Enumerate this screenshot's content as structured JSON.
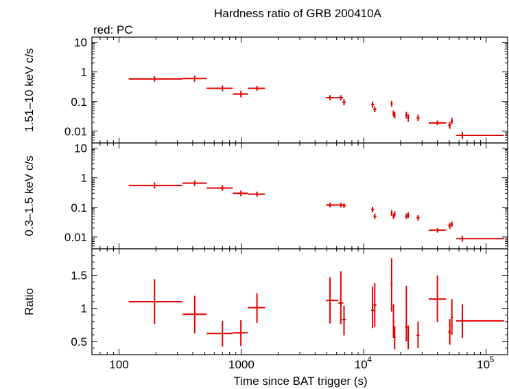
{
  "title": "Hardness ratio of GRB 200410A",
  "mode_label": "red: PC",
  "colors": {
    "data": "#e00000",
    "axes": "#000000",
    "background": "#ffffff"
  },
  "chart_data": [
    {
      "type": "scatter",
      "xscale": "log",
      "yscale": "log",
      "xlim": [
        60,
        150000
      ],
      "ylim": [
        0.004,
        15
      ],
      "ylabel": "1.51–10 keV c/s",
      "yticks": [
        {
          "v": 10,
          "label": "10"
        },
        {
          "v": 1,
          "label": "1"
        },
        {
          "v": 0.1,
          "label": "0.1"
        },
        {
          "v": 0.01,
          "label": "0.01"
        }
      ],
      "series": [
        {
          "color": "#e00000",
          "points": [
            {
              "x": 195,
              "xlo": 120,
              "xhi": 330,
              "y": 0.58,
              "ylo": 0.47,
              "yhi": 0.72
            },
            {
              "x": 415,
              "xlo": 330,
              "xhi": 520,
              "y": 0.6,
              "ylo": 0.47,
              "yhi": 0.76
            },
            {
              "x": 700,
              "xlo": 520,
              "xhi": 850,
              "y": 0.28,
              "ylo": 0.22,
              "yhi": 0.35
            },
            {
              "x": 990,
              "xlo": 850,
              "xhi": 1130,
              "y": 0.18,
              "ylo": 0.14,
              "yhi": 0.23
            },
            {
              "x": 1340,
              "xlo": 1130,
              "xhi": 1560,
              "y": 0.28,
              "ylo": 0.23,
              "yhi": 0.34
            },
            {
              "x": 5300,
              "xlo": 4900,
              "xhi": 6200,
              "y": 0.135,
              "ylo": 0.11,
              "yhi": 0.165
            },
            {
              "x": 6500,
              "xlo": 6200,
              "xhi": 6800,
              "y": 0.135,
              "ylo": 0.11,
              "yhi": 0.165
            },
            {
              "x": 6900,
              "xlo": 6700,
              "xhi": 7150,
              "y": 0.095,
              "ylo": 0.075,
              "yhi": 0.12
            },
            {
              "x": 11800,
              "xlo": 11500,
              "xhi": 12200,
              "y": 0.08,
              "ylo": 0.062,
              "yhi": 0.1
            },
            {
              "x": 12300,
              "xlo": 12000,
              "xhi": 12700,
              "y": 0.055,
              "ylo": 0.044,
              "yhi": 0.068
            },
            {
              "x": 16900,
              "xlo": 16600,
              "xhi": 17200,
              "y": 0.085,
              "ylo": 0.068,
              "yhi": 0.105
            },
            {
              "x": 17500,
              "xlo": 17200,
              "xhi": 17800,
              "y": 0.04,
              "ylo": 0.031,
              "yhi": 0.05
            },
            {
              "x": 17900,
              "xlo": 17700,
              "xhi": 18200,
              "y": 0.035,
              "ylo": 0.027,
              "yhi": 0.044
            },
            {
              "x": 22300,
              "xlo": 21800,
              "xhi": 22800,
              "y": 0.035,
              "ylo": 0.027,
              "yhi": 0.045
            },
            {
              "x": 23100,
              "xlo": 22700,
              "xhi": 23500,
              "y": 0.028,
              "ylo": 0.021,
              "yhi": 0.037
            },
            {
              "x": 27800,
              "xlo": 27000,
              "xhi": 28600,
              "y": 0.028,
              "ylo": 0.022,
              "yhi": 0.036
            },
            {
              "x": 40000,
              "xlo": 34000,
              "xhi": 47000,
              "y": 0.019,
              "ylo": 0.016,
              "yhi": 0.023
            },
            {
              "x": 50500,
              "xlo": 49000,
              "xhi": 51500,
              "y": 0.016,
              "ylo": 0.012,
              "yhi": 0.021
            },
            {
              "x": 52500,
              "xlo": 51500,
              "xhi": 53500,
              "y": 0.022,
              "ylo": 0.017,
              "yhi": 0.028
            },
            {
              "x": 64000,
              "xlo": 57000,
              "xhi": 140000,
              "y": 0.0072,
              "ylo": 0.0055,
              "yhi": 0.0095
            }
          ]
        }
      ]
    },
    {
      "type": "scatter",
      "xscale": "log",
      "yscale": "log",
      "xlim": [
        60,
        150000
      ],
      "ylim": [
        0.004,
        15
      ],
      "ylabel": "0.3–1.5 keV c/s",
      "yticks": [
        {
          "v": 10,
          "label": "10"
        },
        {
          "v": 1,
          "label": "1"
        },
        {
          "v": 0.1,
          "label": "0.1"
        },
        {
          "v": 0.01,
          "label": "0.01"
        }
      ],
      "series": [
        {
          "color": "#e00000",
          "points": [
            {
              "x": 195,
              "xlo": 120,
              "xhi": 330,
              "y": 0.55,
              "ylo": 0.43,
              "yhi": 0.7
            },
            {
              "x": 415,
              "xlo": 330,
              "xhi": 520,
              "y": 0.66,
              "ylo": 0.53,
              "yhi": 0.82
            },
            {
              "x": 700,
              "xlo": 520,
              "xhi": 850,
              "y": 0.45,
              "ylo": 0.36,
              "yhi": 0.56
            },
            {
              "x": 990,
              "xlo": 850,
              "xhi": 1130,
              "y": 0.3,
              "ylo": 0.24,
              "yhi": 0.37
            },
            {
              "x": 1340,
              "xlo": 1130,
              "xhi": 1560,
              "y": 0.28,
              "ylo": 0.23,
              "yhi": 0.34
            },
            {
              "x": 5300,
              "xlo": 4900,
              "xhi": 6200,
              "y": 0.12,
              "ylo": 0.1,
              "yhi": 0.145
            },
            {
              "x": 6500,
              "xlo": 6200,
              "xhi": 6800,
              "y": 0.12,
              "ylo": 0.1,
              "yhi": 0.145
            },
            {
              "x": 6900,
              "xlo": 6700,
              "xhi": 7150,
              "y": 0.115,
              "ylo": 0.095,
              "yhi": 0.14
            },
            {
              "x": 11800,
              "xlo": 11500,
              "xhi": 12200,
              "y": 0.085,
              "ylo": 0.068,
              "yhi": 0.105
            },
            {
              "x": 12300,
              "xlo": 12000,
              "xhi": 12700,
              "y": 0.05,
              "ylo": 0.04,
              "yhi": 0.062
            },
            {
              "x": 16900,
              "xlo": 16600,
              "xhi": 17200,
              "y": 0.065,
              "ylo": 0.052,
              "yhi": 0.08
            },
            {
              "x": 17500,
              "xlo": 17200,
              "xhi": 17800,
              "y": 0.05,
              "ylo": 0.04,
              "yhi": 0.062
            },
            {
              "x": 17900,
              "xlo": 17700,
              "xhi": 18200,
              "y": 0.06,
              "ylo": 0.048,
              "yhi": 0.074
            },
            {
              "x": 22300,
              "xlo": 21800,
              "xhi": 22800,
              "y": 0.05,
              "ylo": 0.04,
              "yhi": 0.062
            },
            {
              "x": 23100,
              "xlo": 22700,
              "xhi": 23500,
              "y": 0.055,
              "ylo": 0.044,
              "yhi": 0.068
            },
            {
              "x": 27800,
              "xlo": 27000,
              "xhi": 28600,
              "y": 0.045,
              "ylo": 0.036,
              "yhi": 0.055
            },
            {
              "x": 40000,
              "xlo": 34000,
              "xhi": 47000,
              "y": 0.017,
              "ylo": 0.014,
              "yhi": 0.02
            },
            {
              "x": 50500,
              "xlo": 49000,
              "xhi": 51500,
              "y": 0.024,
              "ylo": 0.019,
              "yhi": 0.03
            },
            {
              "x": 52500,
              "xlo": 51500,
              "xhi": 53500,
              "y": 0.027,
              "ylo": 0.022,
              "yhi": 0.033
            },
            {
              "x": 64000,
              "xlo": 57000,
              "xhi": 140000,
              "y": 0.0088,
              "ylo": 0.007,
              "yhi": 0.011
            }
          ]
        }
      ]
    },
    {
      "type": "scatter",
      "xscale": "log",
      "yscale": "linear",
      "xlim": [
        60,
        150000
      ],
      "ylim": [
        0.3,
        1.9
      ],
      "ylabel": "Ratio",
      "xlabel": "Time since BAT trigger (s)",
      "yticks": [
        {
          "v": 1.5,
          "label": "1.5"
        },
        {
          "v": 1,
          "label": "1"
        },
        {
          "v": 0.5,
          "label": "0.5"
        }
      ],
      "xticks": [
        {
          "v": 100,
          "label": "100"
        },
        {
          "v": 1000,
          "label": "1000"
        },
        {
          "v": 10000,
          "label": "10",
          "exp": "4"
        },
        {
          "v": 100000,
          "label": "10",
          "exp": "5"
        }
      ],
      "series": [
        {
          "color": "#e00000",
          "points": [
            {
              "x": 195,
              "xlo": 120,
              "xhi": 330,
              "y": 1.1,
              "ylo": 0.76,
              "yhi": 1.44
            },
            {
              "x": 415,
              "xlo": 330,
              "xhi": 520,
              "y": 0.91,
              "ylo": 0.62,
              "yhi": 1.19
            },
            {
              "x": 700,
              "xlo": 520,
              "xhi": 850,
              "y": 0.62,
              "ylo": 0.42,
              "yhi": 0.81
            },
            {
              "x": 990,
              "xlo": 850,
              "xhi": 1130,
              "y": 0.63,
              "ylo": 0.43,
              "yhi": 0.82
            },
            {
              "x": 1340,
              "xlo": 1130,
              "xhi": 1560,
              "y": 1.01,
              "ylo": 0.78,
              "yhi": 1.23
            },
            {
              "x": 5300,
              "xlo": 4900,
              "xhi": 6200,
              "y": 1.12,
              "ylo": 0.77,
              "yhi": 1.47
            },
            {
              "x": 6500,
              "xlo": 6200,
              "xhi": 6800,
              "y": 1.08,
              "ylo": 0.76,
              "yhi": 1.56
            },
            {
              "x": 6900,
              "xlo": 6700,
              "xhi": 7150,
              "y": 0.83,
              "ylo": 0.59,
              "yhi": 1.04
            },
            {
              "x": 11800,
              "xlo": 11500,
              "xhi": 12200,
              "y": 0.97,
              "ylo": 0.7,
              "yhi": 1.33
            },
            {
              "x": 12300,
              "xlo": 12000,
              "xhi": 12700,
              "y": 1.05,
              "ylo": 0.72,
              "yhi": 1.38
            },
            {
              "x": 16900,
              "xlo": 16600,
              "xhi": 17200,
              "y": 1.36,
              "ylo": 0.95,
              "yhi": 1.76
            },
            {
              "x": 17500,
              "xlo": 17200,
              "xhi": 17800,
              "y": 0.8,
              "ylo": 0.55,
              "yhi": 1.06
            },
            {
              "x": 17900,
              "xlo": 17700,
              "xhi": 18200,
              "y": 0.56,
              "ylo": 0.38,
              "yhi": 0.73
            },
            {
              "x": 22300,
              "xlo": 21800,
              "xhi": 22800,
              "y": 0.72,
              "ylo": 0.5,
              "yhi": 1.34
            },
            {
              "x": 23100,
              "xlo": 22700,
              "xhi": 23500,
              "y": 0.56,
              "ylo": 0.38,
              "yhi": 0.74
            },
            {
              "x": 27800,
              "xlo": 27000,
              "xhi": 28600,
              "y": 0.59,
              "ylo": 0.4,
              "yhi": 0.8
            },
            {
              "x": 40000,
              "xlo": 34000,
              "xhi": 47000,
              "y": 1.14,
              "ylo": 0.79,
              "yhi": 1.5
            },
            {
              "x": 50500,
              "xlo": 49000,
              "xhi": 51500,
              "y": 0.64,
              "ylo": 0.45,
              "yhi": 0.84
            },
            {
              "x": 52500,
              "xlo": 51500,
              "xhi": 53500,
              "y": 0.86,
              "ylo": 0.6,
              "yhi": 1.14
            },
            {
              "x": 64000,
              "xlo": 57000,
              "xhi": 140000,
              "y": 0.81,
              "ylo": 0.55,
              "yhi": 1.06
            }
          ]
        }
      ]
    }
  ]
}
